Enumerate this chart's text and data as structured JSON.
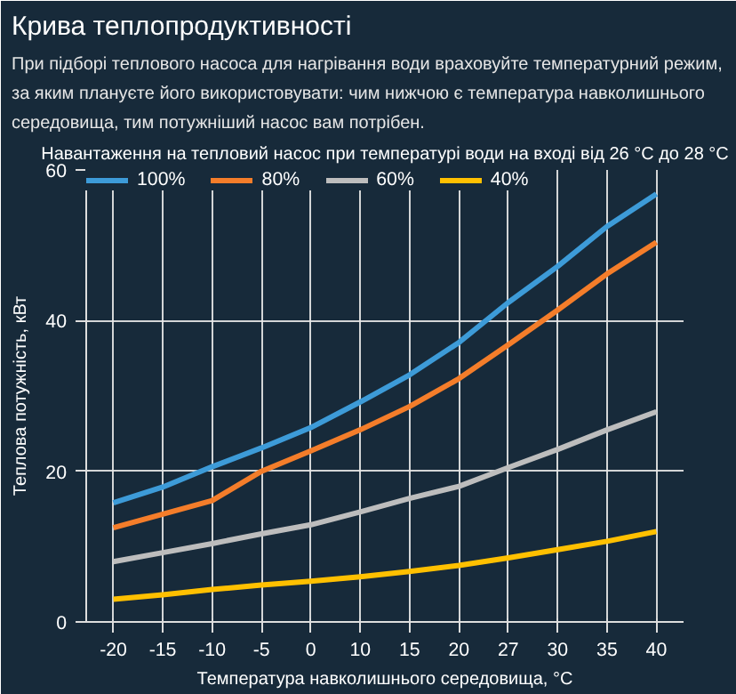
{
  "chart_data": {
    "type": "line",
    "title": "Крива теплопродуктивності",
    "subtitle": "При підборі теплового насоса для нагрівання води враховуйте температурний режим, за яким плануєте його використовувати: чим нижчою є температура навколишнього середовища, тим потужніший насос вам потрібен.",
    "annotations": [
      "Навантаження на тепловий насос при температурі води на вході від 26 °C до 28 °C"
    ],
    "xlabel": "Температура навколишнього середовища, °C",
    "ylabel": "Теплова потужність, кВт",
    "categories": [
      "-20",
      "-15",
      "-10",
      "-5",
      "0",
      "10",
      "15",
      "20",
      "27",
      "30",
      "35",
      "40"
    ],
    "series": [
      {
        "name": "100%",
        "color": "#3d9bd8",
        "values": [
          15.8,
          17.9,
          20.6,
          23.1,
          25.8,
          29.2,
          32.8,
          37.1,
          42.4,
          47.2,
          52.5,
          56.8
        ]
      },
      {
        "name": "80%",
        "color": "#f47d2a",
        "values": [
          12.5,
          14.3,
          16.1,
          20.0,
          22.7,
          25.5,
          28.6,
          32.3,
          36.8,
          41.4,
          46.2,
          50.4
        ]
      },
      {
        "name": "60%",
        "color": "#bdbdbd",
        "values": [
          8.0,
          9.2,
          10.4,
          11.7,
          12.9,
          14.6,
          16.4,
          18.0,
          20.5,
          22.9,
          25.5,
          27.9
        ]
      },
      {
        "name": "40%",
        "color": "#ffc000",
        "values": [
          3.0,
          3.6,
          4.3,
          4.9,
          5.4,
          6.0,
          6.7,
          7.5,
          8.5,
          9.6,
          10.7,
          12.0
        ]
      }
    ],
    "ylim": [
      0,
      60
    ],
    "yticks": [
      0,
      20,
      40,
      60
    ],
    "grid": true,
    "legend": "top left",
    "marker": "none",
    "line_style": "solid"
  }
}
